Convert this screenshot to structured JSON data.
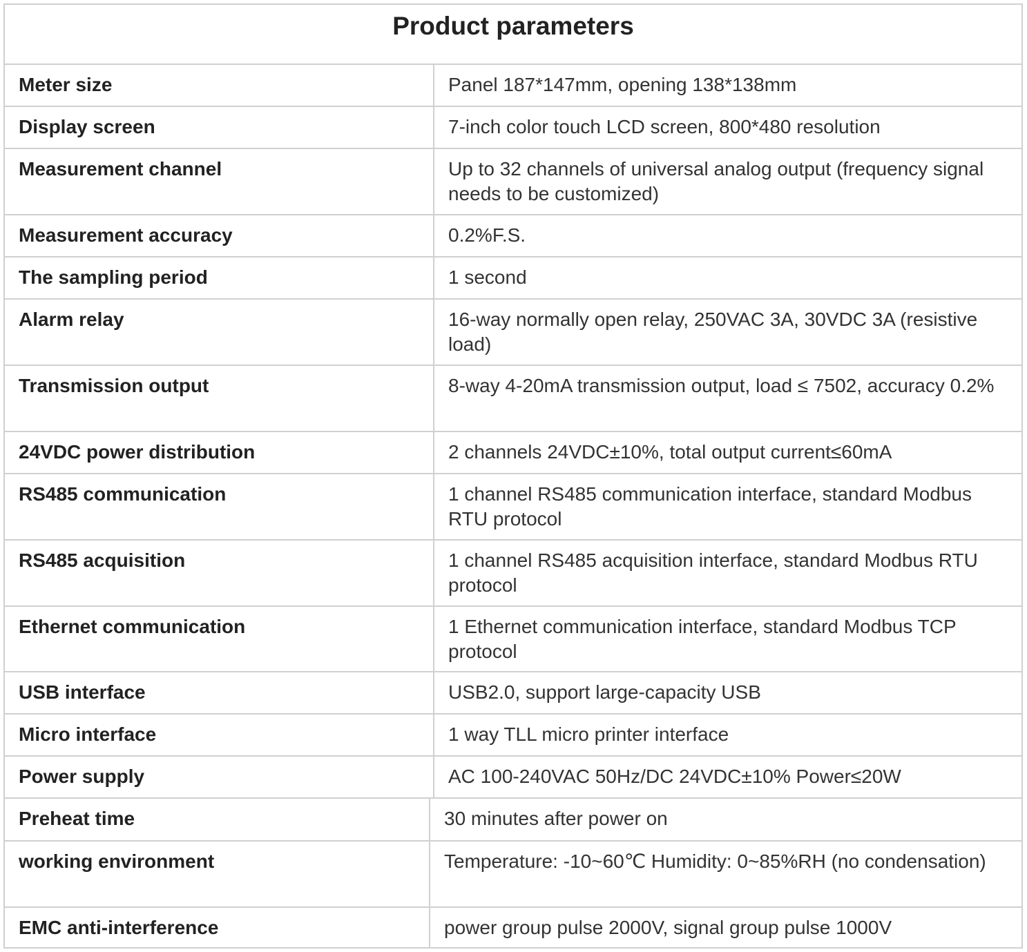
{
  "header": {
    "title": "Product parameters"
  },
  "table": {
    "rows": [
      [
        "Meter size",
        "Panel 187*147mm, opening 138*138mm"
      ],
      [
        "Display screen",
        "7-inch color touch LCD screen, 800*480 resolution"
      ],
      [
        "Measurement channel",
        "Up to 32 channels of universal analog output (frequency signal needs to be customized)"
      ],
      [
        "Measurement accuracy",
        "0.2%F.S."
      ],
      [
        "The sampling period",
        "1 second"
      ],
      [
        "Alarm relay",
        "16-way normally open relay, 250VAC 3A, 30VDC 3A (resistive load)"
      ],
      [
        "Transmission output",
        "8-way 4-20mA transmission output, load ≤ 7502, accuracy 0.2%"
      ],
      [
        "24VDC power distribution",
        "2 channels 24VDC±10%, total output current≤60mA"
      ],
      [
        "RS485 communication",
        "1 channel RS485 communication interface, standard Modbus RTU protocol"
      ],
      [
        "RS485 acquisition",
        "1 channel RS485 acquisition interface, standard Modbus RTU protocol"
      ],
      [
        "Ethernet communication",
        "1 Ethernet communication interface, standard Modbus TCP protocol"
      ],
      [
        "USB interface",
        "USB2.0, support large-capacity USB"
      ],
      [
        "Micro interface",
        "1 way TLL micro printer interface"
      ],
      [
        "Power supply",
        "AC 100-240VAC 50Hz/DC 24VDC±10% Power≤20W"
      ],
      [
        "Preheat time",
        "30 minutes after power on"
      ],
      [
        "working environment",
        "Temperature: -10~60℃ Humidity: 0~85%RH (no condensation)"
      ],
      [
        "EMC anti-interference",
        "power group pulse 2000V, signal group pulse 1000V"
      ]
    ]
  }
}
